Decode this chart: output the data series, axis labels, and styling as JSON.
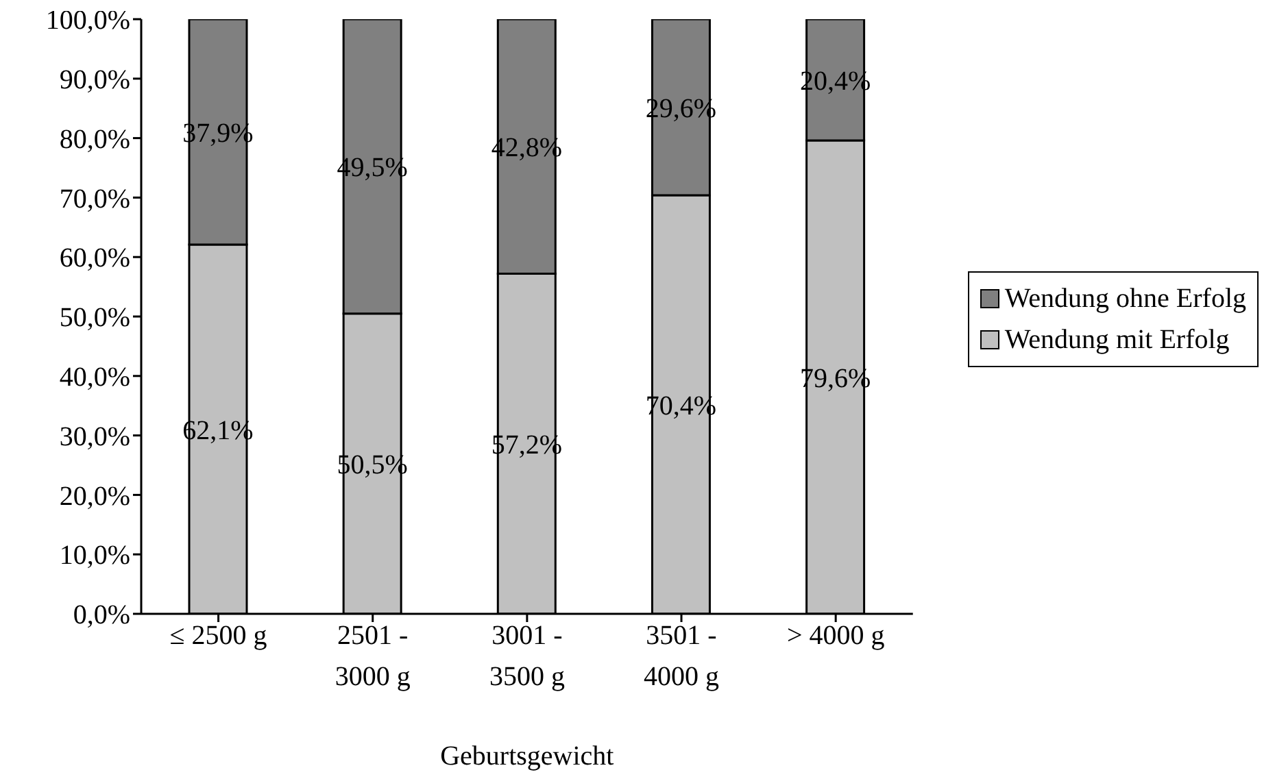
{
  "chart_data": {
    "type": "bar",
    "stacked": true,
    "xlabel": "Geburtsgewicht",
    "categories": [
      "≤ 2500 g",
      "2501 - 3000 g",
      "3001 - 3500 g",
      "3501 - 4000 g",
      "> 4000 g"
    ],
    "series": [
      {
        "name": "Wendung mit Erfolg",
        "color": "#c0c0c0",
        "values": [
          62.1,
          50.5,
          57.2,
          70.4,
          79.6
        ],
        "value_labels": [
          "62,1%",
          "50,5%",
          "57,2%",
          "70,4%",
          "79,6%"
        ]
      },
      {
        "name": "Wendung ohne Erfolg",
        "color": "#808080",
        "values": [
          37.9,
          49.5,
          42.8,
          29.6,
          20.4
        ],
        "value_labels": [
          "37,9%",
          "49,5%",
          "42,8%",
          "29,6%",
          "20,4%"
        ]
      }
    ],
    "ylim": [
      0,
      100
    ],
    "yticks": [
      {
        "value": 0,
        "label": "0,0%"
      },
      {
        "value": 10,
        "label": "10,0%"
      },
      {
        "value": 20,
        "label": "20,0%"
      },
      {
        "value": 30,
        "label": "30,0%"
      },
      {
        "value": 40,
        "label": "40,0%"
      },
      {
        "value": 50,
        "label": "50,0%"
      },
      {
        "value": 60,
        "label": "60,0%"
      },
      {
        "value": 70,
        "label": "70,0%"
      },
      {
        "value": 80,
        "label": "80,0%"
      },
      {
        "value": 90,
        "label": "90,0%"
      },
      {
        "value": 100,
        "label": "100,0%"
      }
    ],
    "grid": false,
    "legend": "right"
  }
}
